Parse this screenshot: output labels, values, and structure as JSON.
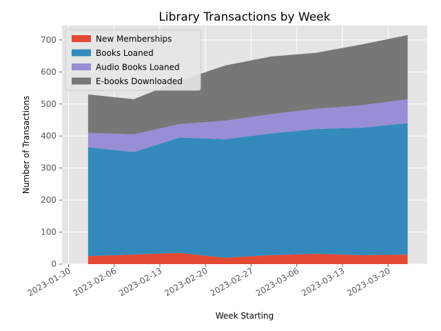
{
  "chart_data": {
    "type": "area",
    "stacked": true,
    "title": "Library Transactions by Week",
    "xlabel": "Week Starting",
    "ylabel": "Number of Transactions",
    "x": [
      "2023-02-02",
      "2023-02-09",
      "2023-02-16",
      "2023-02-23",
      "2023-03-02",
      "2023-03-09",
      "2023-03-16",
      "2023-03-23"
    ],
    "xticks": [
      "2023-01-30",
      "2023-02-06",
      "2023-02-13",
      "2023-02-20",
      "2023-02-27",
      "2023-03-06",
      "2023-03-13",
      "2023-03-20"
    ],
    "yticks": [
      0,
      100,
      200,
      300,
      400,
      500,
      600,
      700
    ],
    "ylim": [
      0,
      745
    ],
    "xlim": [
      "2023-01-29",
      "2023-03-26"
    ],
    "grid": true,
    "legend_position": "top-left",
    "series": [
      {
        "name": "New Memberships",
        "color": "#e24a33",
        "values": [
          25,
          30,
          35,
          20,
          28,
          32,
          28,
          30
        ]
      },
      {
        "name": "Books Loaned",
        "color": "#348abd",
        "values": [
          340,
          320,
          360,
          370,
          380,
          390,
          398,
          410
        ]
      },
      {
        "name": "Audio Books Loaned",
        "color": "#988ed5",
        "values": [
          45,
          55,
          42,
          58,
          60,
          63,
          70,
          75
        ]
      },
      {
        "name": "E-books Downloaded",
        "color": "#777777",
        "values": [
          120,
          110,
          135,
          172,
          180,
          175,
          190,
          200
        ]
      }
    ]
  }
}
